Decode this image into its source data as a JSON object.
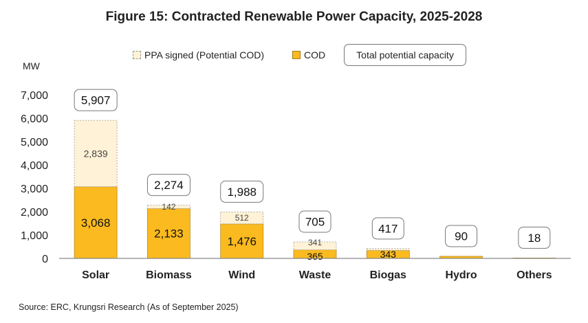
{
  "title": "Figure 15: Contracted Renewable Power Capacity, 2025-2028",
  "source": "Source: ERC, Krungsri Research (As of September 2025)",
  "chart_data": {
    "type": "bar",
    "stacked": true,
    "title": "Figure 15: Contracted Renewable Power Capacity, 2025-2028",
    "ylabel": "MW",
    "xlabel": "",
    "ylim": [
      0,
      7000
    ],
    "yticks": [
      "0",
      "1,000",
      "2,000",
      "3,000",
      "4,000",
      "5,000",
      "6,000",
      "7,000"
    ],
    "categories": [
      "Solar",
      "Biomass",
      "Wind",
      "Waste",
      "Biogas",
      "Hydro",
      "Others"
    ],
    "series": [
      {
        "name": "COD",
        "color": "#FBBA1F",
        "values": [
          3068,
          2133,
          1476,
          365,
          343,
          90,
          18
        ],
        "labels": [
          "3,068",
          "2,133",
          "1,476",
          "365",
          "343",
          "",
          ""
        ]
      },
      {
        "name": "PPA signed (Potential COD)",
        "color": "#FFF2D6",
        "values": [
          2839,
          142,
          512,
          341,
          74,
          0,
          0
        ],
        "labels": [
          "2,839",
          "142",
          "512",
          "341",
          "",
          "",
          ""
        ]
      }
    ],
    "totals": {
      "name": "Total potential capacity",
      "values": [
        5907,
        2274,
        1988,
        705,
        417,
        90,
        18
      ],
      "labels": [
        "5,907",
        "2,274",
        "1,988",
        "705",
        "417",
        "90",
        "18"
      ]
    },
    "grid": false,
    "legend_position": "top"
  }
}
